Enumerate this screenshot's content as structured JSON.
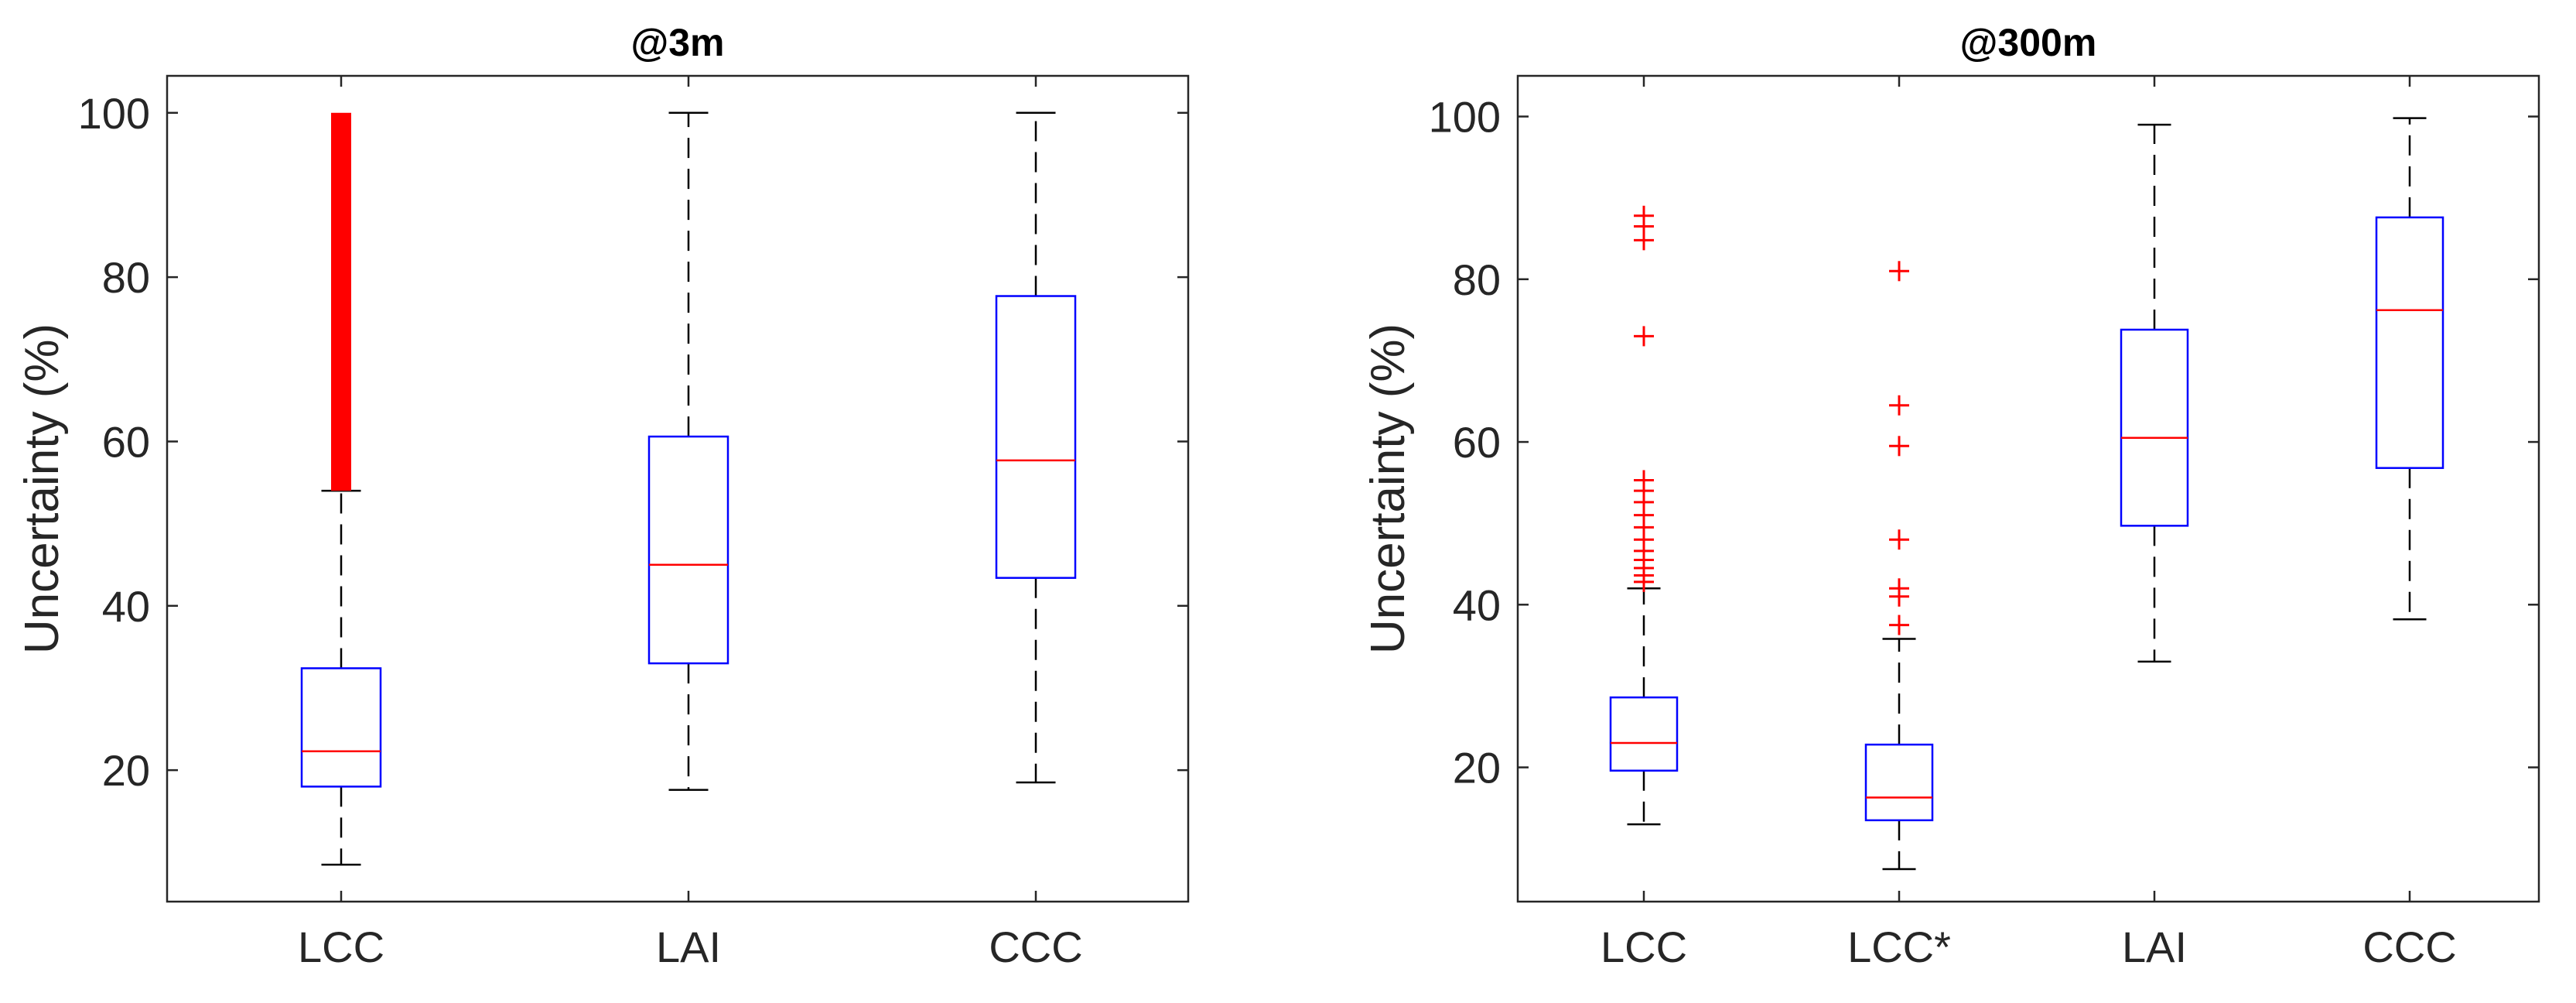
{
  "colors": {
    "box": "#0000ff",
    "median": "#ff0000",
    "outlier": "#ff0000",
    "whisker": "#000000",
    "axes": "#262626",
    "background": "#ffffff"
  },
  "chart_data": [
    {
      "type": "box",
      "title": "@3m",
      "ylabel": "Uncertainty (%)",
      "xlabel": "",
      "ylim": [
        4,
        104.5
      ],
      "yticks": [
        20,
        40,
        60,
        80,
        100
      ],
      "categories": [
        "LCC",
        "LAI",
        "CCC"
      ],
      "boxes": [
        {
          "label": "LCC",
          "whisker_low": 8.5,
          "q1": 18,
          "median": 22.3,
          "q3": 32.4,
          "whisker_high": 54,
          "outliers_range": [
            54,
            100
          ]
        },
        {
          "label": "LAI",
          "whisker_low": 17.6,
          "q1": 33,
          "median": 45,
          "q3": 60.6,
          "whisker_high": 100,
          "outliers": []
        },
        {
          "label": "CCC",
          "whisker_low": 18.5,
          "q1": 43.4,
          "median": 57.7,
          "q3": 77.7,
          "whisker_high": 100,
          "outliers": []
        }
      ]
    },
    {
      "type": "box",
      "title": "@300m",
      "ylabel": "Uncertainty (%)",
      "xlabel": "",
      "ylim": [
        3.5,
        105
      ],
      "yticks": [
        20,
        40,
        60,
        80,
        100
      ],
      "categories": [
        "LCC",
        "LCC*",
        "LAI",
        "CCC"
      ],
      "boxes": [
        {
          "label": "LCC",
          "whisker_low": 13,
          "q1": 19.6,
          "median": 23,
          "q3": 28.6,
          "whisker_high": 42,
          "outliers": [
            42.8,
            43.6,
            44.5,
            45.5,
            46.6,
            48,
            49.5,
            51,
            52.6,
            54,
            55.3,
            73,
            84.8,
            86.5,
            87.8
          ]
        },
        {
          "label": "LCC*",
          "whisker_low": 7.5,
          "q1": 13.5,
          "median": 16.3,
          "q3": 22.8,
          "whisker_high": 35.8,
          "outliers": [
            37.5,
            41,
            42,
            48,
            59.5,
            64.5,
            81
          ]
        },
        {
          "label": "LAI",
          "whisker_low": 33,
          "q1": 49.7,
          "median": 60.5,
          "q3": 73.8,
          "whisker_high": 99,
          "outliers": []
        },
        {
          "label": "CCC",
          "whisker_low": 38.2,
          "q1": 56.8,
          "median": 76.2,
          "q3": 87.6,
          "whisker_high": 99.8,
          "outliers": []
        }
      ]
    }
  ]
}
